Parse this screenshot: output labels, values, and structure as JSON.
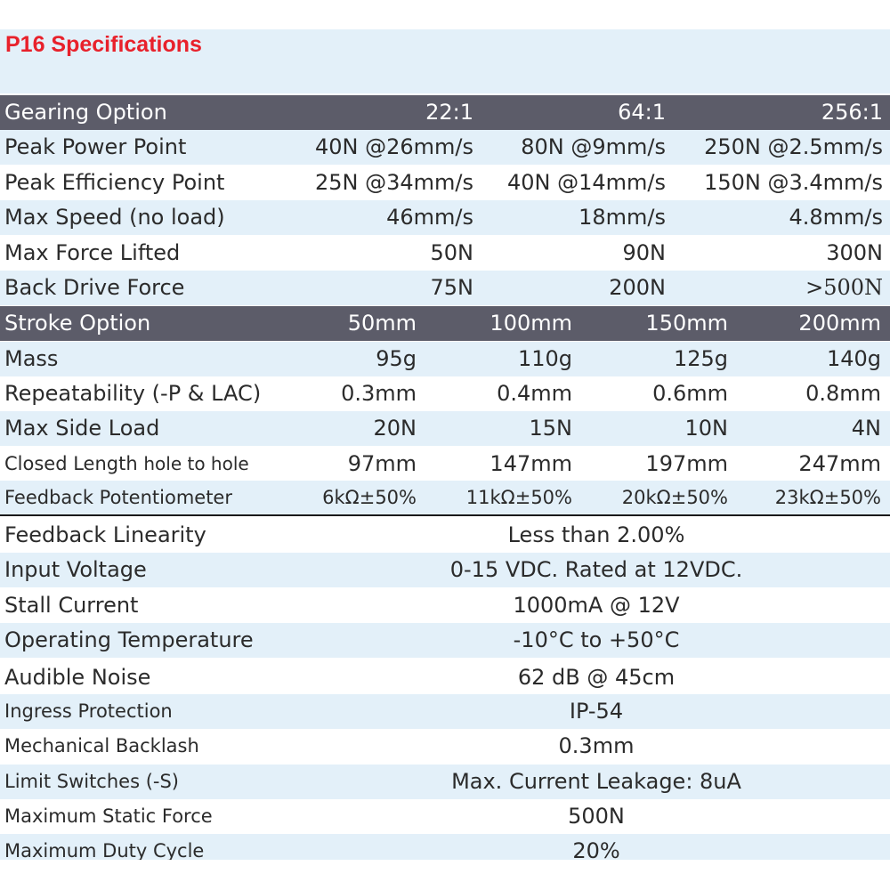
{
  "title": "P16 Specifications",
  "gearing_header": {
    "label": "Gearing Option",
    "cols": [
      "22:1",
      "64:1",
      "256:1"
    ]
  },
  "gearing_rows": [
    {
      "label": "Peak Power Point",
      "values": [
        "40N @26mm/s",
        "80N @9mm/s",
        "250N @2.5mm/s"
      ]
    },
    {
      "label": "Peak Efficiency Point",
      "values": [
        "25N @34mm/s",
        "40N @14mm/s",
        "150N @3.4mm/s"
      ]
    },
    {
      "label": "Max Speed (no load)",
      "values": [
        "46mm/s",
        "18mm/s",
        "4.8mm/s"
      ]
    },
    {
      "label": "Max Force Lifted",
      "values": [
        "50N",
        "90N",
        "300N"
      ]
    },
    {
      "label": "Back Drive Force",
      "values": [
        "75N",
        "200N",
        ">500N"
      ]
    }
  ],
  "stroke_header": {
    "label": "Stroke Option",
    "cols": [
      "50mm",
      "100mm",
      "150mm",
      "200mm"
    ]
  },
  "stroke_rows": [
    {
      "label": "Mass",
      "values": [
        "95g",
        "110g",
        "125g",
        "140g"
      ]
    },
    {
      "label": "Repeatability (-P & LAC)",
      "values": [
        "0.3mm",
        "0.4mm",
        "0.6mm",
        "0.8mm"
      ]
    },
    {
      "label": "Max Side Load",
      "values": [
        "20N",
        "15N",
        "10N",
        "4N"
      ]
    },
    {
      "label": "Closed Length",
      "label_sub": "hole to hole",
      "values": [
        "97mm",
        "147mm",
        "197mm",
        "247mm"
      ]
    },
    {
      "label": "Feedback Potentiometer",
      "values": [
        "6kΩ±50%",
        "11kΩ±50%",
        "20kΩ±50%",
        "23kΩ±50%"
      ]
    }
  ],
  "general_rows": [
    {
      "label": "Feedback Linearity",
      "value": "Less than 2.00%"
    },
    {
      "label": "Input Voltage",
      "value": "0-15 VDC.  Rated at 12VDC."
    },
    {
      "label": "Stall Current",
      "value": "1000mA @ 12V"
    },
    {
      "label": "Operating Temperature",
      "value": "-10°C to +50°C"
    },
    {
      "label": "Audible Noise",
      "value": "62 dB @ 45cm"
    },
    {
      "label": "Ingress Protection",
      "value": "IP-54"
    },
    {
      "label": "Mechanical Backlash",
      "value": "0.3mm"
    },
    {
      "label": "Limit Switches (-S)",
      "value": "Max. Current Leakage: 8uA"
    },
    {
      "label": "Maximum Static Force",
      "value": "500N"
    },
    {
      "label": "Maximum Duty Cycle",
      "value": "20%"
    }
  ],
  "colors": {
    "title": "#e8212b",
    "header_band": "#5c5c69",
    "stripe": "#e3f0f9"
  }
}
